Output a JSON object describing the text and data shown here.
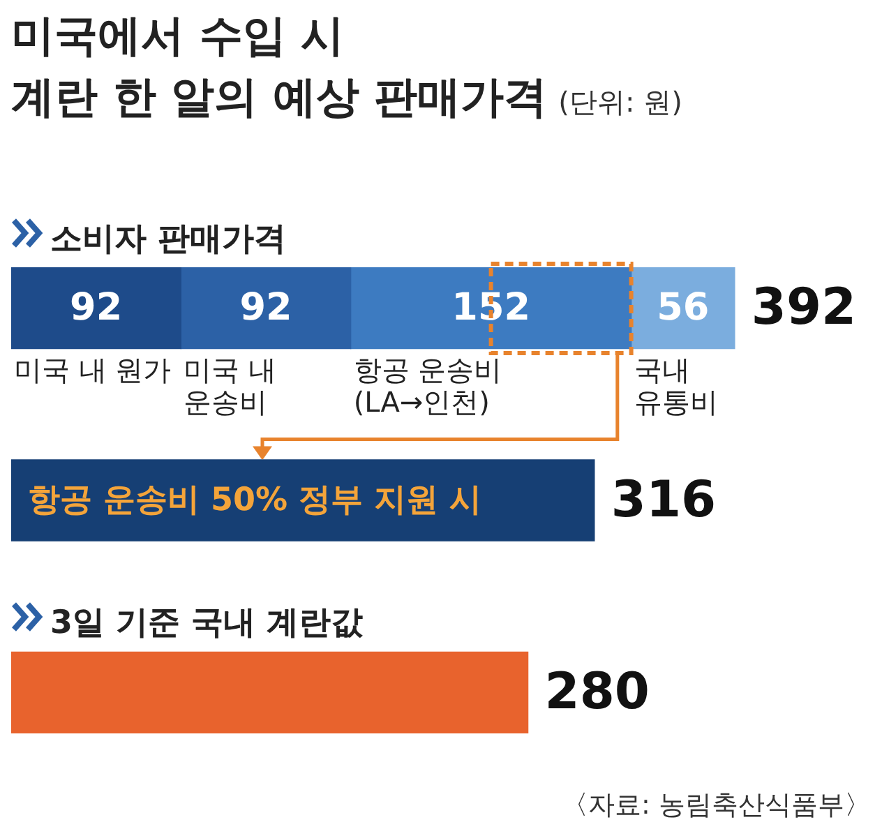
{
  "chart_data": {
    "type": "bar",
    "orientation": "horizontal",
    "stacked": true,
    "legend": false,
    "title": "미국에서 수입 시\n계란 한 알의 예상 판매가격",
    "subtitle": "(단위: 원)",
    "categories": [
      "소비자 판매가격",
      null,
      "3일 기준 국내 계란값"
    ],
    "series": [
      {
        "name": "미국 내 원가",
        "color": "#1e4b8a",
        "values": [
          92,
          null,
          null
        ],
        "value_labels": [
          "92",
          null,
          null
        ]
      },
      {
        "name": "미국 내 운송비",
        "color": "#2c61a6",
        "values": [
          92,
          null,
          null
        ],
        "value_labels": [
          "92",
          null,
          null
        ]
      },
      {
        "name": "항공 운송비 (LA→인천)",
        "color": "#3d7bc1",
        "values": [
          152,
          null,
          null
        ],
        "value_labels": [
          "152",
          null,
          null
        ]
      },
      {
        "name": "국내 유통비",
        "color": "#7badde",
        "values": [
          56,
          null,
          null
        ],
        "value_labels": [
          "56",
          null,
          null
        ]
      },
      {
        "name": "항공 운송비 50% 정부 지원 시",
        "color": "#163f74",
        "values": [
          null,
          316,
          null
        ]
      },
      {
        "color": "#e8632d",
        "values": [
          null,
          null,
          280
        ]
      }
    ],
    "totals": [
      "392",
      "316",
      "280"
    ],
    "annotations": [
      "〈자료: 농림축산식품부〉"
    ]
  }
}
